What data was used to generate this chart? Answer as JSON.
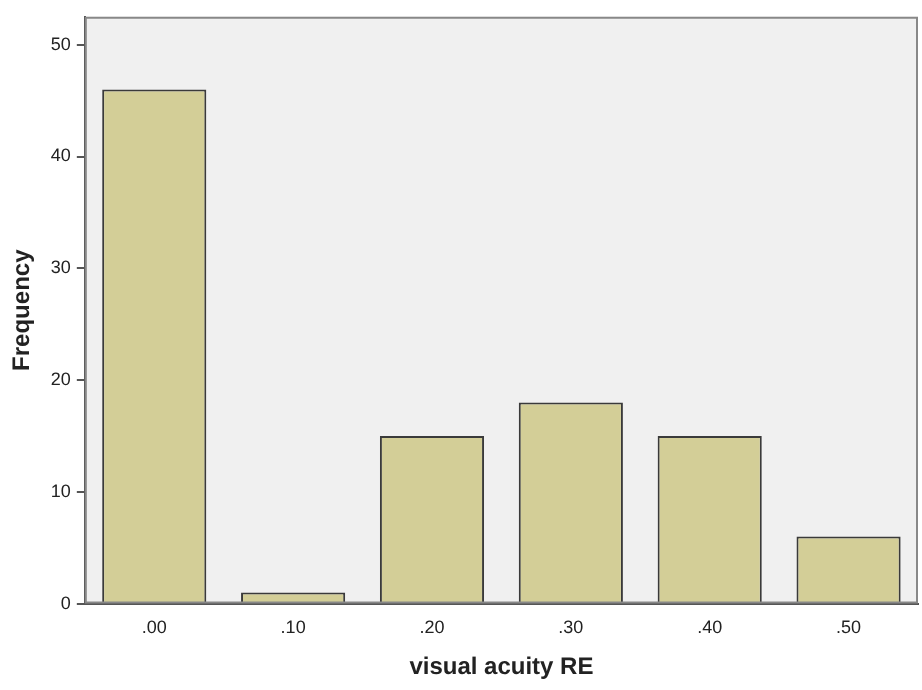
{
  "chart_data": {
    "type": "bar",
    "xlabel": "visual acuity RE",
    "ylabel": "Frequency",
    "categories": [
      ".00",
      ".10",
      ".20",
      ".30",
      ".40",
      ".50"
    ],
    "values": [
      46,
      1,
      15,
      18,
      15,
      6
    ],
    "color": "#d3ce97",
    "ylim": [
      0,
      52.5
    ],
    "yticks": [
      0,
      10,
      20,
      30,
      40,
      50
    ],
    "grid": false,
    "legend": false
  }
}
